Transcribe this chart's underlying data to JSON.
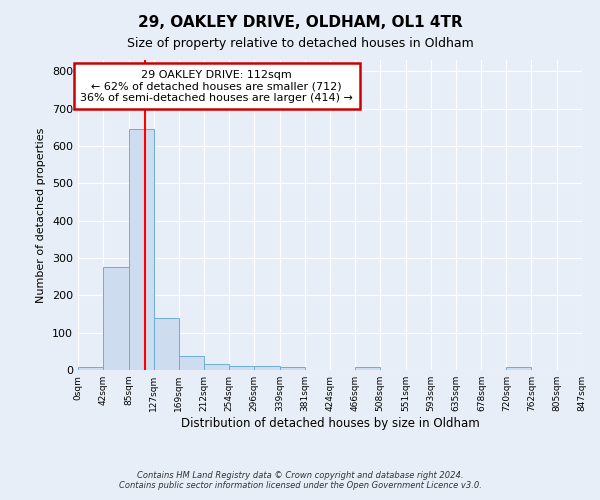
{
  "title_line1": "29, OAKLEY DRIVE, OLDHAM, OL1 4TR",
  "title_line2": "Size of property relative to detached houses in Oldham",
  "xlabel": "Distribution of detached houses by size in Oldham",
  "ylabel": "Number of detached properties",
  "footnote": "Contains HM Land Registry data © Crown copyright and database right 2024.\nContains public sector information licensed under the Open Government Licence v3.0.",
  "bin_edges": [
    0,
    42,
    85,
    127,
    169,
    212,
    254,
    296,
    339,
    381,
    424,
    466,
    508,
    551,
    593,
    635,
    678,
    720,
    762,
    805,
    847
  ],
  "bar_heights": [
    8,
    275,
    645,
    138,
    37,
    17,
    12,
    12,
    8,
    0,
    0,
    8,
    0,
    0,
    0,
    0,
    0,
    8,
    0,
    0
  ],
  "bar_color": "#cddcee",
  "bar_edgecolor": "#6aaed6",
  "background_color": "#e8eef8",
  "grid_color": "#ffffff",
  "red_line_x": 112,
  "annotation_line1": "29 OAKLEY DRIVE: 112sqm",
  "annotation_line2": "← 62% of detached houses are smaller (712)",
  "annotation_line3": "36% of semi-detached houses are larger (414) →",
  "annotation_box_color": "#ffffff",
  "annotation_border_color": "#cc0000",
  "ylim": [
    0,
    830
  ],
  "yticks": [
    0,
    100,
    200,
    300,
    400,
    500,
    600,
    700,
    800
  ],
  "tick_labels": [
    "0sqm",
    "42sqm",
    "85sqm",
    "127sqm",
    "169sqm",
    "212sqm",
    "254sqm",
    "296sqm",
    "339sqm",
    "381sqm",
    "424sqm",
    "466sqm",
    "508sqm",
    "551sqm",
    "593sqm",
    "635sqm",
    "678sqm",
    "720sqm",
    "762sqm",
    "805sqm",
    "847sqm"
  ]
}
